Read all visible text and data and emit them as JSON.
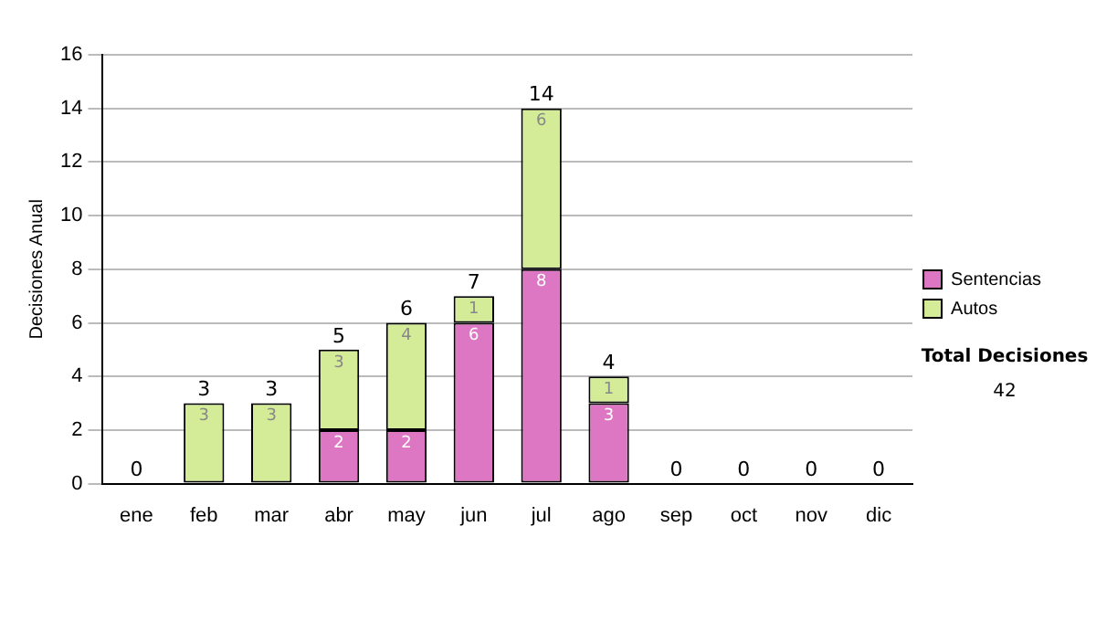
{
  "chart_data": {
    "type": "bar",
    "stacked": true,
    "ylabel": "Decisiones Anual",
    "categories": [
      "ene",
      "feb",
      "mar",
      "abr",
      "may",
      "jun",
      "jul",
      "ago",
      "sep",
      "oct",
      "nov",
      "dic"
    ],
    "series": [
      {
        "name": "Sentencias",
        "color": "#dd77c4",
        "values": [
          0,
          0,
          0,
          2,
          2,
          6,
          8,
          3,
          0,
          0,
          0,
          0
        ],
        "value_labels": [
          null,
          null,
          null,
          "2",
          "2",
          "6",
          "8",
          "3",
          null,
          null,
          null,
          null
        ]
      },
      {
        "name": "Autos",
        "color": "#d4ec98",
        "values": [
          0,
          3,
          3,
          3,
          4,
          1,
          6,
          1,
          0,
          0,
          0,
          0
        ],
        "value_labels": [
          null,
          "3",
          "3",
          "3",
          "4",
          "1",
          "6",
          "1",
          null,
          null,
          null,
          null
        ]
      }
    ],
    "totals": [
      "0",
      "3",
      "3",
      "5",
      "6",
      "7",
      "14",
      "4",
      "0",
      "0",
      "0",
      "0"
    ],
    "ylim": [
      0,
      16
    ],
    "yticks": [
      0,
      2,
      4,
      6,
      8,
      10,
      12,
      14,
      16
    ],
    "grid": "y",
    "legend": "right",
    "annotations": [
      "Total Decisiones",
      "42"
    ]
  }
}
